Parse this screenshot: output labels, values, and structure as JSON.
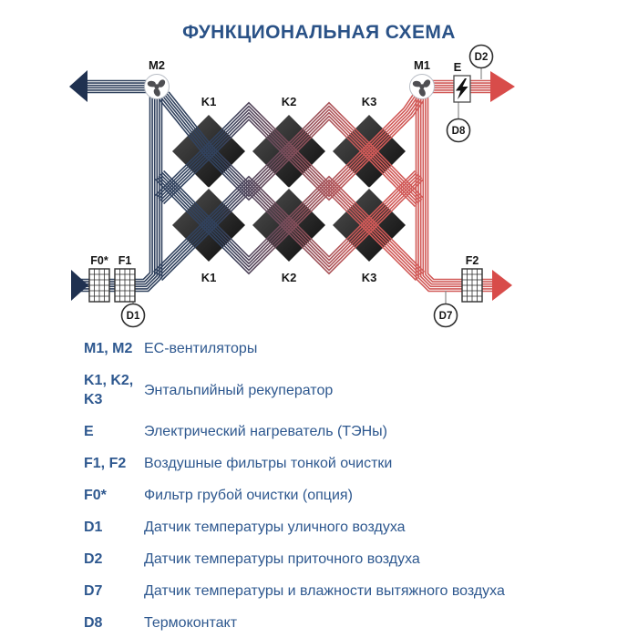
{
  "title": "ФУНКЦИОНАЛЬНАЯ СХЕМА",
  "diagram": {
    "labels": {
      "m1": "M1",
      "m2": "M2",
      "e": "E",
      "k1": "K1",
      "k2": "K2",
      "k3": "K3",
      "f0": "F0*",
      "f1": "F1",
      "f2": "F2",
      "d1": "D1",
      "d2": "D2",
      "d7": "D7",
      "d8": "D8"
    },
    "colors": {
      "band_cold": "#31425e",
      "band_warm": "#d15a58",
      "arrow_cold": "#1f3150",
      "arrow_warm": "#d84c4a",
      "recuperator_light": "#505050",
      "recuperator_dark": "#0b0b0b",
      "fan_blade": "#4e4e52",
      "outline": "#2f2f2f"
    }
  },
  "legend": {
    "rows": [
      {
        "term": "M1, M2",
        "desc": "EC-вентиляторы"
      },
      {
        "term": "K1, K2, K3",
        "desc": "Энтальпийный рекуператор"
      },
      {
        "term": "E",
        "desc": "Электрический нагреватель (ТЭНы)"
      },
      {
        "term": "F1, F2",
        "desc": "Воздушные фильтры тонкой очистки"
      },
      {
        "term": "F0*",
        "desc": "Фильтр грубой очистки (опция)"
      },
      {
        "term": "D1",
        "desc": "Датчик температуры уличного воздуха"
      },
      {
        "term": "D2",
        "desc": "Датчик температуры приточного воздуха"
      },
      {
        "term": "D7",
        "desc": "Датчик температуры и влажности вытяжного воздуха"
      },
      {
        "term": "D8",
        "desc": "Термоконтакт"
      }
    ]
  },
  "ui_colors": {
    "title_text": "#2a5287",
    "legend_text": "#2e588f"
  }
}
